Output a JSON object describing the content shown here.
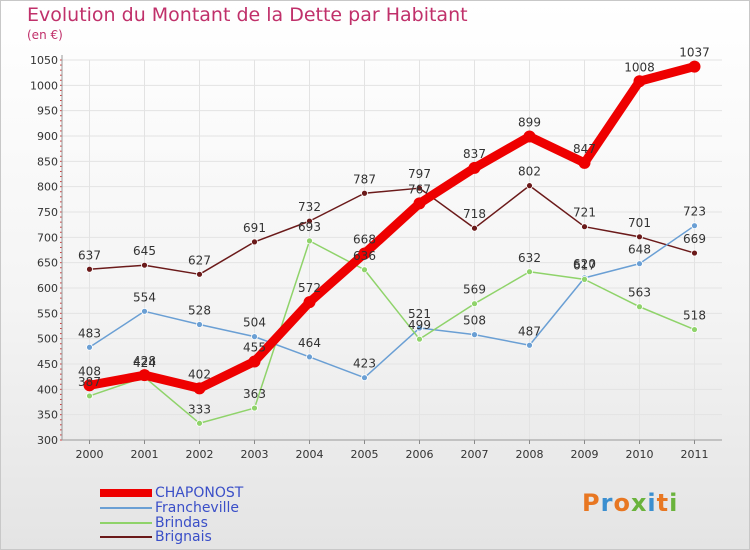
{
  "title": "Evolution du Montant de la Dette par Habitant",
  "unit_label": "(en €)",
  "logo_text": "Proxiti",
  "logo_colors": [
    "#e87722",
    "#3b8fd0",
    "#e87722",
    "#6ab33c",
    "#3b8fd0",
    "#e87722",
    "#6ab33c"
  ],
  "chart_data": {
    "type": "line",
    "title": "Evolution du Montant de la Dette par Habitant",
    "ylabel": "(en €)",
    "xlabel": "",
    "ylim": [
      300,
      1050
    ],
    "yticks": [
      300,
      350,
      400,
      450,
      500,
      550,
      600,
      650,
      700,
      750,
      800,
      850,
      900,
      950,
      1000,
      1050
    ],
    "x": [
      "2000",
      "2001",
      "2002",
      "2003",
      "2004",
      "2005",
      "2006",
      "2007",
      "2008",
      "2009",
      "2010",
      "2011"
    ],
    "grid": true,
    "legend_position": "bottom-left",
    "series": [
      {
        "name": "Brignais",
        "color": "#6b1a1a",
        "values": [
          637,
          645,
          627,
          691,
          732,
          787,
          797,
          718,
          802,
          721,
          701,
          669
        ]
      },
      {
        "name": "Francheville",
        "color": "#6a9fd4",
        "values": [
          483,
          554,
          528,
          504,
          464,
          423,
          521,
          508,
          487,
          620,
          648,
          723
        ]
      },
      {
        "name": "Brindas",
        "color": "#8fd36a",
        "values": [
          387,
          424,
          333,
          363,
          693,
          636,
          499,
          569,
          632,
          617,
          563,
          518
        ]
      },
      {
        "name": "CHAPONOST",
        "color": "#ee0000",
        "values": [
          408,
          428,
          402,
          455,
          572,
          668,
          767,
          837,
          899,
          847,
          1008,
          1037
        ]
      }
    ]
  },
  "legend": [
    {
      "name": "CHAPONOST",
      "color": "#ee0000",
      "thickness": 8
    },
    {
      "name": "Francheville",
      "color": "#6a9fd4",
      "thickness": 2
    },
    {
      "name": "Brindas",
      "color": "#8fd36a",
      "thickness": 2
    },
    {
      "name": "Brignais",
      "color": "#6b1a1a",
      "thickness": 2
    }
  ]
}
